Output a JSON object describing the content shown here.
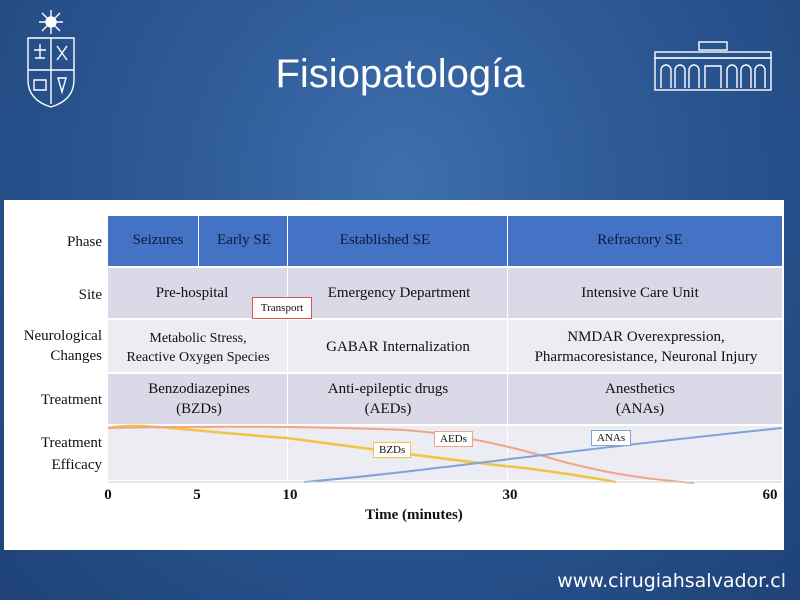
{
  "slide": {
    "title": "Fisiopatología",
    "footer_url": "www.cirugiahsalvador.cl"
  },
  "logos": {
    "left_icon": "university-crest-icon",
    "right_icon": "hospital-building-icon"
  },
  "figure": {
    "row_labels": {
      "phase": "Phase",
      "site": "Site",
      "neuro_1": "Neurological",
      "neuro_2": "Changes",
      "treatment": "Treatment",
      "efficacy_1": "Treatment",
      "efficacy_2": "Efficacy"
    },
    "phases": {
      "seizures": "Seizures",
      "early_se": "Early SE",
      "established_se": "Established SE",
      "refractory_se": "Refractory SE"
    },
    "sites": {
      "prehospital": "Pre-hospital",
      "transport": "Transport",
      "ed": "Emergency Department",
      "icu": "Intensive Care Unit"
    },
    "neuro": {
      "col1_line1": "Metabolic Stress,",
      "col1_line2": "Reactive Oxygen Species",
      "col2": "GABAR Internalization",
      "col3_line1": "NMDAR Overexpression,",
      "col3_line2": "Pharmacoresistance, Neuronal Injury"
    },
    "treatment": {
      "col1_line1": "Benzodiazepines",
      "col1_line2": "(BZDs)",
      "col2_line1": "Anti-epileptic drugs",
      "col2_line2": "(AEDs)",
      "col3_line1": "Anesthetics",
      "col3_line2": "(ANAs)"
    },
    "curve_labels": {
      "bzds": "BZDs",
      "aeds": "AEDs",
      "anas": "ANAs"
    },
    "axis": {
      "ticks": [
        "0",
        "5",
        "10",
        "30",
        "60"
      ],
      "title": "Time (minutes)"
    },
    "colors": {
      "phase_band": "#4472c4",
      "site_band": "#d9d9e8",
      "neuro_band": "#ececf3",
      "treatment_band": "#d9d9e8",
      "efficacy_band": "#ececf3",
      "bzd_curve": "#f2c443",
      "aed_curve": "#f1a48b",
      "ana_curve": "#7fa3d6",
      "transport_border": "#d9534f"
    }
  }
}
